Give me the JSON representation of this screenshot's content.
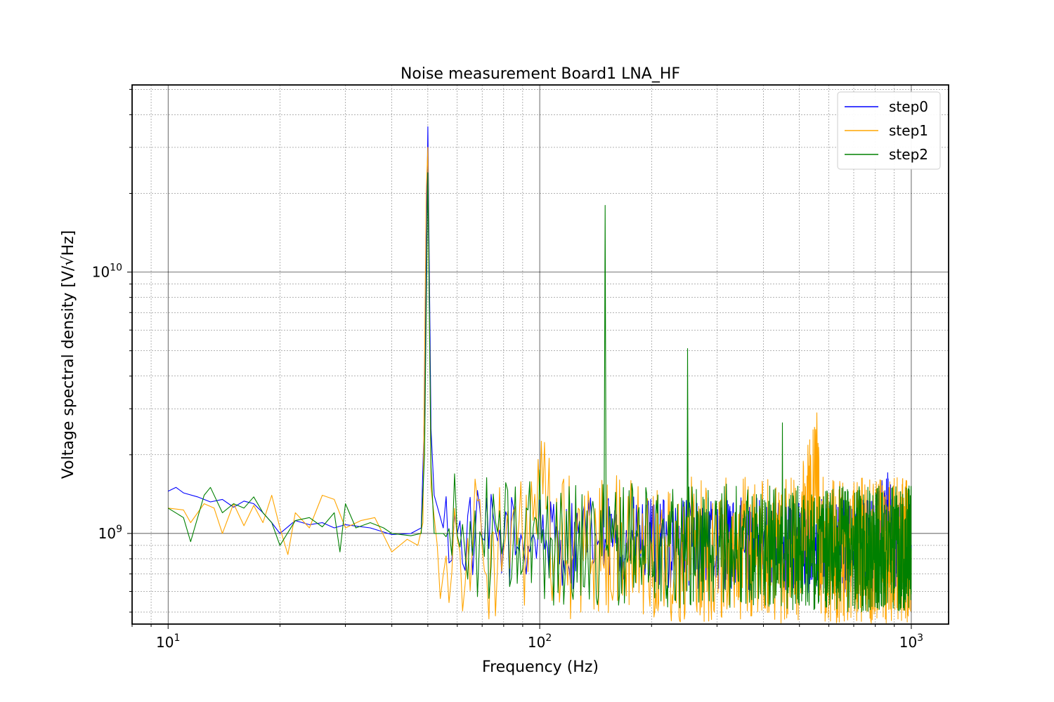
{
  "chart_data": {
    "type": "line",
    "title": "Noise measurement Board1 LNA_HF",
    "xlabel": "Frequency (Hz)",
    "ylabel": "Voltage spectral density [V/√Hz]",
    "x_scale": "log",
    "y_scale": "log",
    "xlim": [
      8,
      1260
    ],
    "ylim": [
      450000000,
      52000000000
    ],
    "x_major_ticks": [
      {
        "value": 10,
        "base": "10",
        "exp": "1"
      },
      {
        "value": 100,
        "base": "10",
        "exp": "2"
      },
      {
        "value": 1000,
        "base": "10",
        "exp": "3"
      }
    ],
    "y_major_ticks": [
      {
        "value": 1000000000,
        "base": "10",
        "exp": "9"
      },
      {
        "value": 10000000000,
        "base": "10",
        "exp": "10"
      }
    ],
    "grid": "major and minor",
    "legend_position": "top-right",
    "baseline": 920000000,
    "series": [
      {
        "name": "step0",
        "color": "#0000ff",
        "points": [
          [
            10,
            1450000000
          ],
          [
            10.5,
            1500000000
          ],
          [
            11,
            1430000000
          ],
          [
            12,
            1380000000
          ],
          [
            13,
            1320000000
          ],
          [
            14,
            1350000000
          ],
          [
            15,
            1260000000
          ],
          [
            16,
            1330000000
          ],
          [
            17,
            1300000000
          ],
          [
            18,
            1200000000
          ],
          [
            19,
            1100000000
          ],
          [
            20,
            1000000000
          ],
          [
            22,
            1120000000
          ],
          [
            24,
            1080000000
          ],
          [
            26,
            1100000000
          ],
          [
            28,
            1050000000
          ],
          [
            30,
            1080000000
          ],
          [
            35,
            1050000000
          ],
          [
            40,
            990000000
          ],
          [
            45,
            1000000000
          ],
          [
            48,
            1050000000
          ],
          [
            49,
            3000000000
          ],
          [
            50,
            36000000000
          ],
          [
            51,
            2500000000
          ],
          [
            52,
            1400000000
          ],
          [
            55,
            1050000000
          ],
          [
            60,
            1000000000
          ],
          [
            70,
            960000000
          ],
          [
            80,
            940000000
          ],
          [
            90,
            930000000
          ],
          [
            99,
            1000000000
          ],
          [
            100,
            1450000000
          ],
          [
            101,
            950000000
          ],
          [
            110,
            920000000
          ],
          [
            130,
            930000000
          ],
          [
            150,
            950000000
          ],
          [
            160,
            920000000
          ],
          [
            200,
            910000000
          ],
          [
            250,
            930000000
          ],
          [
            300,
            900000000
          ],
          [
            400,
            910000000
          ],
          [
            500,
            900000000
          ],
          [
            600,
            890000000
          ],
          [
            700,
            900000000
          ],
          [
            800,
            880000000
          ],
          [
            850,
            1300000000
          ],
          [
            900,
            890000000
          ],
          [
            1000,
            900000000
          ]
        ],
        "spikes": [],
        "noise_from": 55,
        "noise_amp": 0.18
      },
      {
        "name": "step1",
        "color": "#ffa500",
        "points": [
          [
            10,
            1250000000
          ],
          [
            11,
            1230000000
          ],
          [
            11.5,
            1100000000
          ],
          [
            12.5,
            1300000000
          ],
          [
            13.3,
            1250000000
          ],
          [
            14,
            1000000000
          ],
          [
            15,
            1300000000
          ],
          [
            16,
            1070000000
          ],
          [
            17,
            1280000000
          ],
          [
            18,
            1100000000
          ],
          [
            19,
            1400000000
          ],
          [
            20,
            1050000000
          ],
          [
            21,
            830000000
          ],
          [
            22,
            1200000000
          ],
          [
            24,
            1050000000
          ],
          [
            26,
            1400000000
          ],
          [
            28,
            1350000000
          ],
          [
            30,
            1050000000
          ],
          [
            33,
            1120000000
          ],
          [
            36,
            1150000000
          ],
          [
            40,
            850000000
          ],
          [
            44,
            950000000
          ],
          [
            47,
            900000000
          ],
          [
            48.5,
            1100000000
          ],
          [
            49.5,
            20000000000
          ],
          [
            50,
            30000000000
          ],
          [
            51,
            1500000000
          ],
          [
            53,
            900000000
          ],
          [
            56,
            820000000
          ],
          [
            60,
            950000000
          ],
          [
            70,
            880000000
          ],
          [
            80,
            860000000
          ],
          [
            90,
            880000000
          ],
          [
            100,
            1350000000
          ],
          [
            110,
            870000000
          ],
          [
            150,
            880000000
          ],
          [
            200,
            860000000
          ],
          [
            300,
            870000000
          ],
          [
            400,
            860000000
          ],
          [
            500,
            870000000
          ],
          [
            560,
            1750000000
          ],
          [
            570,
            870000000
          ],
          [
            700,
            860000000
          ],
          [
            1000,
            860000000
          ]
        ],
        "spikes": [],
        "noise_from": 53,
        "noise_amp": 0.28
      },
      {
        "name": "step2",
        "color": "#008000",
        "points": [
          [
            10,
            1250000000
          ],
          [
            11,
            1150000000
          ],
          [
            11.5,
            930000000
          ],
          [
            12.5,
            1400000000
          ],
          [
            13,
            1500000000
          ],
          [
            14,
            1200000000
          ],
          [
            15,
            1300000000
          ],
          [
            16,
            1250000000
          ],
          [
            17,
            1380000000
          ],
          [
            18,
            1200000000
          ],
          [
            19,
            1100000000
          ],
          [
            20,
            900000000
          ],
          [
            22,
            1120000000
          ],
          [
            24,
            1150000000
          ],
          [
            26,
            1060000000
          ],
          [
            28,
            1200000000
          ],
          [
            29,
            850000000
          ],
          [
            30,
            1300000000
          ],
          [
            32,
            1050000000
          ],
          [
            35,
            1100000000
          ],
          [
            38,
            1050000000
          ],
          [
            40,
            1000000000
          ],
          [
            45,
            980000000
          ],
          [
            48,
            1000000000
          ],
          [
            49,
            2000000000
          ],
          [
            50,
            24000000000
          ],
          [
            51,
            1800000000
          ],
          [
            52,
            1000000000
          ],
          [
            55,
            1000000000
          ],
          [
            60,
            980000000
          ],
          [
            70,
            960000000
          ],
          [
            80,
            940000000
          ],
          [
            99,
            950000000
          ],
          [
            100,
            1750000000
          ],
          [
            101,
            920000000
          ],
          [
            150,
            920000000
          ],
          [
            200,
            910000000
          ],
          [
            300,
            890000000
          ],
          [
            500,
            880000000
          ],
          [
            700,
            870000000
          ],
          [
            1000,
            880000000
          ]
        ],
        "spikes": [
          [
            150,
            18000000000
          ],
          [
            250,
            5100000000
          ],
          [
            450,
            2650000000
          ]
        ],
        "noise_from": 55,
        "noise_amp": 0.24
      }
    ]
  }
}
